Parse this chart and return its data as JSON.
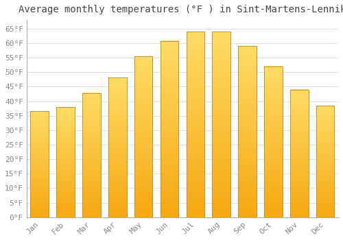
{
  "title": "Average monthly temperatures (°F ) in Sint-Martens-Lennik",
  "months": [
    "Jan",
    "Feb",
    "Mar",
    "Apr",
    "May",
    "Jun",
    "Jul",
    "Aug",
    "Sep",
    "Oct",
    "Nov",
    "Dec"
  ],
  "values": [
    36.5,
    38.0,
    42.8,
    48.2,
    55.4,
    60.8,
    63.9,
    63.9,
    59.0,
    52.0,
    44.0,
    38.5
  ],
  "bar_color_bottom": "#F5A800",
  "bar_color_top": "#FFD966",
  "bar_edge_color": "#C8922A",
  "background_color": "#FFFFFF",
  "plot_bg_color": "#FFFFFF",
  "ylim": [
    0,
    68
  ],
  "yticks": [
    0,
    5,
    10,
    15,
    20,
    25,
    30,
    35,
    40,
    45,
    50,
    55,
    60,
    65
  ],
  "ytick_labels": [
    "0°F",
    "5°F",
    "10°F",
    "15°F",
    "20°F",
    "25°F",
    "30°F",
    "35°F",
    "40°F",
    "45°F",
    "50°F",
    "55°F",
    "60°F",
    "65°F"
  ],
  "grid_color": "#DDDDDD",
  "title_fontsize": 10,
  "tick_fontsize": 8,
  "font_family": "monospace"
}
